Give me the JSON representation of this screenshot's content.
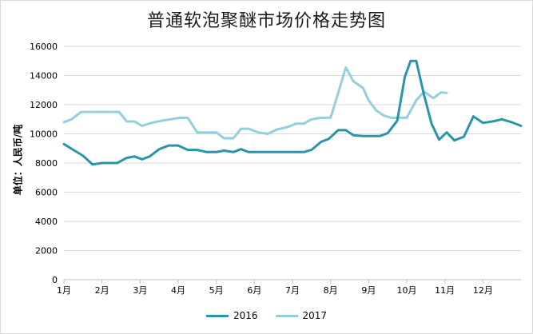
{
  "chart_data": {
    "type": "line",
    "title": "普通软泡聚醚市场价格走势图",
    "xlabel": "",
    "ylabel": "单位：人民币/吨",
    "ylim": [
      0,
      16000
    ],
    "yticks": [
      0,
      2000,
      4000,
      6000,
      8000,
      10000,
      12000,
      14000,
      16000
    ],
    "xtick_labels": [
      "1月",
      "2月",
      "3月",
      "4月",
      "5月",
      "6月",
      "7月",
      "8月",
      "9月",
      "10月",
      "11月",
      "12月"
    ],
    "x_range_months": [
      1,
      13
    ],
    "grid": "horizontal",
    "legend_position": "bottom",
    "colors": {
      "2016": "#2a94ab",
      "2017": "#93cfdd",
      "grid": "#d9d9d9",
      "axis": "#bfbfbf"
    },
    "series": [
      {
        "name": "2016",
        "x": [
          1,
          1.25,
          1.5,
          1.75,
          2,
          2.25,
          2.4,
          2.65,
          2.85,
          3.05,
          3.25,
          3.5,
          3.75,
          4,
          4.25,
          4.5,
          4.75,
          5,
          5.2,
          5.45,
          5.65,
          5.85,
          6.1,
          6.4,
          6.65,
          6.9,
          7.1,
          7.3,
          7.5,
          7.75,
          7.95,
          8.2,
          8.4,
          8.6,
          8.85,
          9.1,
          9.3,
          9.5,
          9.75,
          9.95,
          10.1,
          10.25,
          10.45,
          10.65,
          10.85,
          11.05,
          11.25,
          11.5,
          11.75,
          12,
          12.25,
          12.5,
          12.75,
          13
        ],
        "values": [
          9300,
          8900,
          8500,
          7900,
          8000,
          8000,
          8000,
          8350,
          8450,
          8250,
          8450,
          8950,
          9200,
          9200,
          8900,
          8900,
          8750,
          8750,
          8850,
          8750,
          8950,
          8750,
          8750,
          8750,
          8750,
          8750,
          8750,
          8750,
          8900,
          9450,
          9650,
          10250,
          10250,
          9900,
          9850,
          9850,
          9850,
          10050,
          10900,
          13900,
          15000,
          15000,
          12700,
          10700,
          9600,
          10100,
          9550,
          9800,
          11200,
          10750,
          10850,
          11000,
          10800,
          10550
        ]
      },
      {
        "name": "2017",
        "x": [
          1,
          1.2,
          1.45,
          1.7,
          1.95,
          2.2,
          2.45,
          2.65,
          2.85,
          3.05,
          3.3,
          3.55,
          3.8,
          4.05,
          4.25,
          4.5,
          4.75,
          5,
          5.2,
          5.45,
          5.65,
          5.85,
          6.1,
          6.35,
          6.6,
          6.85,
          7.1,
          7.3,
          7.5,
          7.75,
          8,
          8.2,
          8.4,
          8.6,
          8.85,
          9,
          9.2,
          9.4,
          9.6,
          9.8,
          10,
          10.25,
          10.45,
          10.7,
          10.9,
          11.05
        ],
        "values": [
          10800,
          11000,
          11500,
          11500,
          11500,
          11500,
          11500,
          10850,
          10850,
          10550,
          10750,
          10900,
          11000,
          11100,
          11100,
          10100,
          10100,
          10100,
          9700,
          9700,
          10350,
          10350,
          10100,
          10000,
          10300,
          10450,
          10700,
          10700,
          11000,
          11100,
          11100,
          12800,
          14550,
          13600,
          13150,
          12300,
          11600,
          11250,
          11100,
          11100,
          11100,
          12300,
          12900,
          12450,
          12850,
          12800
        ]
      }
    ]
  }
}
